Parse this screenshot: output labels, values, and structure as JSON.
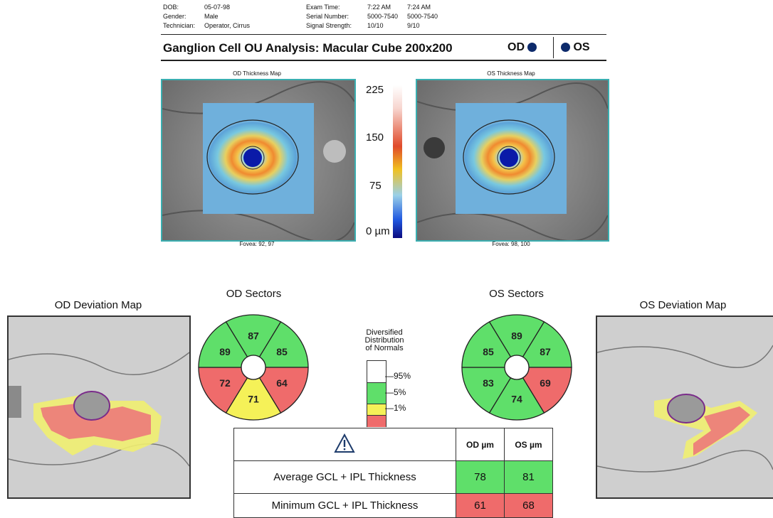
{
  "header": {
    "dob_label": "DOB:",
    "dob": "05-07-98",
    "gender_label": "Gender:",
    "gender": "Male",
    "tech_label": "Technician:",
    "tech": "Operator, Cirrus",
    "exam_label": "Exam Time:",
    "exam_od": "7:22 AM",
    "exam_os": "7:24 AM",
    "serial_label": "Serial Number:",
    "serial_od": "5000-7540",
    "serial_os": "5000-7540",
    "signal_label": "Signal Strength:",
    "signal_od": "10/10",
    "signal_os": "9/10"
  },
  "title": "Ganglion Cell OU Analysis: Macular Cube 200x200",
  "eye_od": "OD",
  "eye_os": "OS",
  "od_map": {
    "caption": "OD Thickness Map",
    "fovea": "Fovea: 92, 97"
  },
  "os_map": {
    "caption": "OS Thickness Map",
    "fovea": "Fovea: 98, 100"
  },
  "scale": {
    "labels": [
      "225",
      "150",
      "75",
      "0 µm"
    ]
  },
  "od_sectors": {
    "title": "OD Sectors",
    "values": [
      "87",
      "85",
      "64",
      "71",
      "72",
      "89"
    ]
  },
  "os_sectors": {
    "title": "OS Sectors",
    "values": [
      "89",
      "87",
      "69",
      "74",
      "83",
      "85"
    ]
  },
  "legend": {
    "title_line1": "Diversified",
    "title_line2": "Distribution",
    "title_line3": "of Normals",
    "p95": "95%",
    "p5": "5%",
    "p1": "1%"
  },
  "dev_od": {
    "title": "OD Deviation Map"
  },
  "dev_os": {
    "title": "OS Deviation Map"
  },
  "table": {
    "warning_icon": "warning-triangle-icon",
    "col_od": "OD µm",
    "col_os": "OS µm",
    "rows": [
      {
        "label": "Average GCL + IPL Thickness",
        "od": "78",
        "os": "81"
      },
      {
        "label": "Minimum GCL + IPL Thickness",
        "od": "61",
        "os": "68"
      }
    ]
  },
  "colors": {
    "normal": "#5fdf6a",
    "borderline": "#f5f158",
    "abnormal": "#ef6b6b"
  }
}
